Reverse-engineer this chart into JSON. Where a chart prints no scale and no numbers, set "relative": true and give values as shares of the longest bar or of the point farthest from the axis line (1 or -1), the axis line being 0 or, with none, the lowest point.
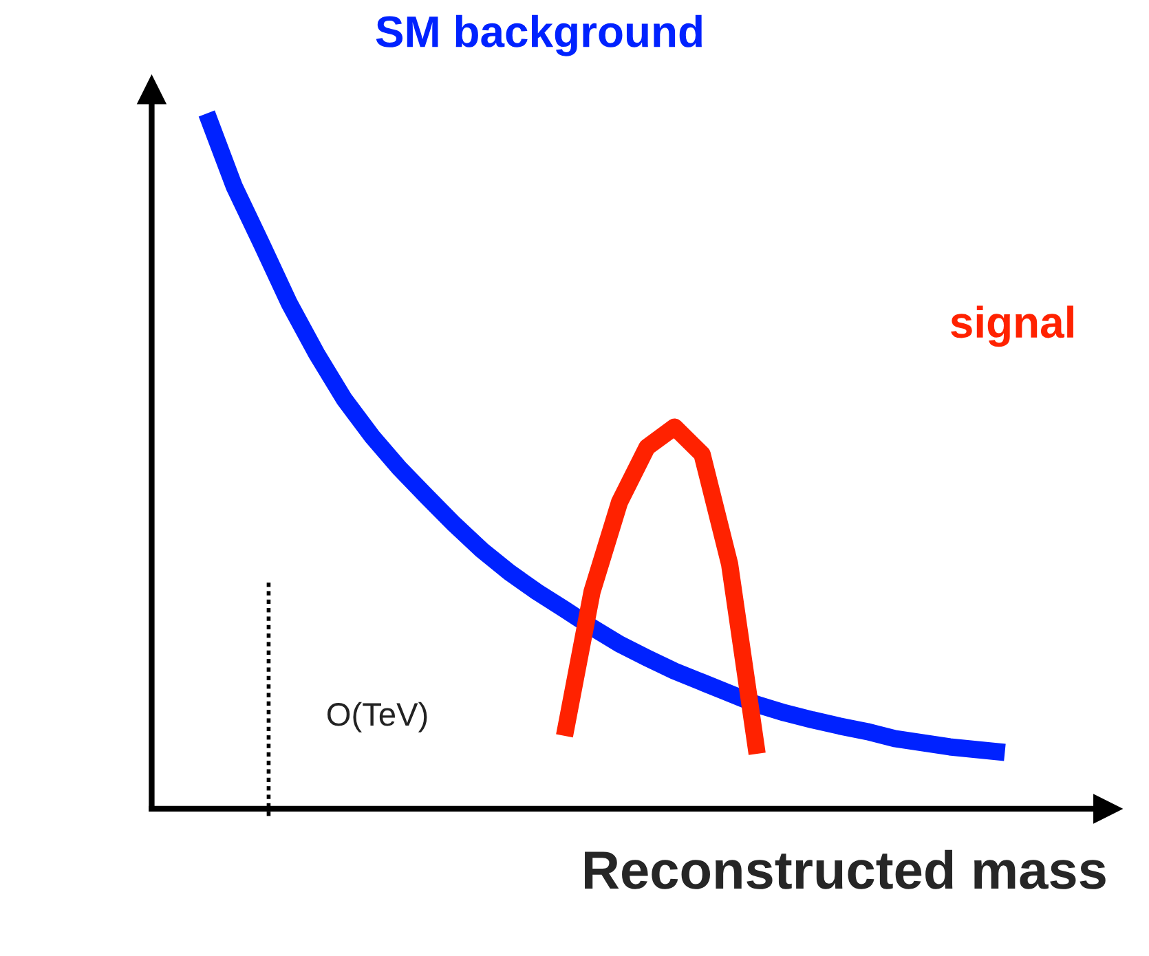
{
  "chart_data": {
    "type": "line",
    "relative": true,
    "xlabel": "Reconstructed mass",
    "legend": false,
    "marker": "none",
    "line_style": "solid",
    "categories": [
      null,
      null,
      null,
      null,
      null,
      null,
      null,
      null,
      null,
      null,
      null,
      null,
      null,
      null,
      null,
      null,
      null,
      null,
      null,
      null,
      null,
      null,
      null,
      null,
      null,
      null,
      null,
      null,
      null,
      null
    ],
    "series": [
      {
        "name": "SM background",
        "color": "#0022ff",
        "values": [
          1.0,
          0.895,
          0.812,
          0.727,
          0.654,
          0.589,
          0.536,
          0.49,
          0.449,
          0.409,
          0.372,
          0.34,
          0.312,
          0.287,
          0.261,
          0.237,
          0.217,
          0.198,
          0.182,
          0.166,
          0.15,
          0.138,
          0.128,
          0.119,
          0.111,
          0.101,
          0.095,
          0.089,
          0.085,
          0.081
        ]
      },
      {
        "name": "signal",
        "color": "#ff2200",
        "values": [
          null,
          null,
          null,
          null,
          null,
          null,
          null,
          null,
          null,
          null,
          null,
          null,
          null,
          0.105,
          0.312,
          0.441,
          0.52,
          0.549,
          0.51,
          0.352,
          0.079,
          null,
          null,
          null,
          null,
          null,
          null,
          null,
          null,
          null
        ]
      }
    ],
    "annotations": [
      "O(TeV)"
    ]
  }
}
